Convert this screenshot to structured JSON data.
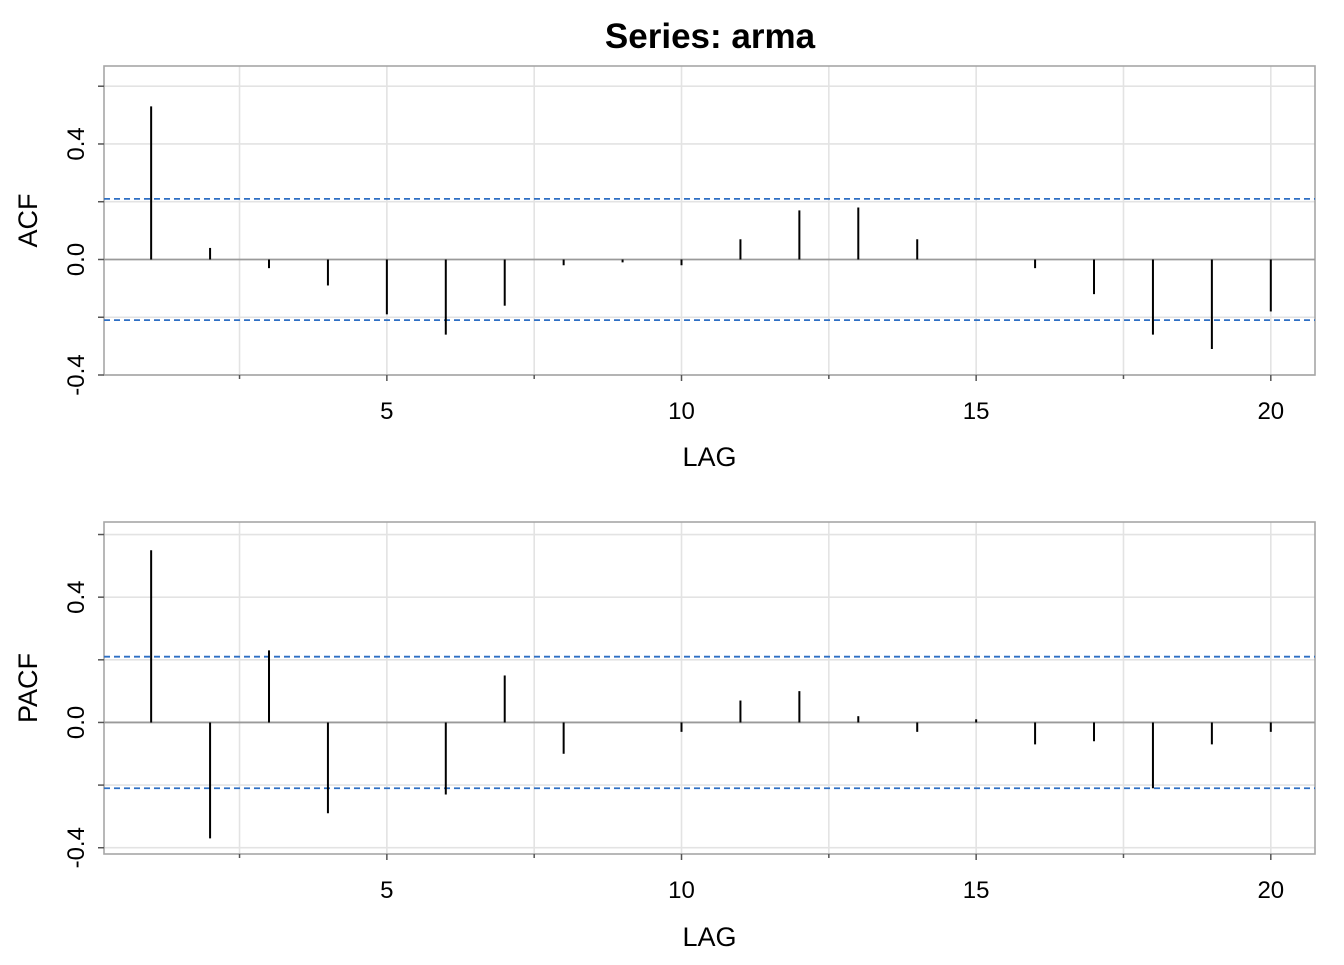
{
  "title": "Series:  arma",
  "chart_data": [
    {
      "type": "bar",
      "ylabel": "ACF",
      "xlabel": "LAG",
      "x_ticks": [
        5,
        10,
        15,
        20
      ],
      "x_tick_labels": [
        "5",
        "10",
        "15",
        "20"
      ],
      "y_ticks": [
        -0.4,
        0.0,
        0.4
      ],
      "y_tick_labels": [
        "-0.4",
        "0.0",
        "0.4"
      ],
      "xlim": [
        0.2,
        20.75
      ],
      "ylim": [
        -0.4,
        0.67
      ],
      "grid": true,
      "confidence_bound": 0.21,
      "lags": [
        1,
        2,
        3,
        4,
        5,
        6,
        7,
        8,
        9,
        10,
        11,
        12,
        13,
        14,
        15,
        16,
        17,
        18,
        19,
        20
      ],
      "values": [
        0.53,
        0.04,
        -0.03,
        -0.09,
        -0.19,
        -0.26,
        -0.16,
        -0.02,
        -0.01,
        -0.02,
        0.07,
        0.17,
        0.18,
        0.07,
        0.0,
        -0.03,
        -0.12,
        -0.26,
        -0.31,
        -0.18
      ]
    },
    {
      "type": "bar",
      "ylabel": "PACF",
      "xlabel": "LAG",
      "x_ticks": [
        5,
        10,
        15,
        20
      ],
      "x_tick_labels": [
        "5",
        "10",
        "15",
        "20"
      ],
      "y_ticks": [
        -0.4,
        0.0,
        0.4
      ],
      "y_tick_labels": [
        "-0.4",
        "0.0",
        "0.4"
      ],
      "xlim": [
        0.2,
        20.75
      ],
      "ylim": [
        -0.42,
        0.64
      ],
      "grid": true,
      "confidence_bound": 0.21,
      "lags": [
        1,
        2,
        3,
        4,
        5,
        6,
        7,
        8,
        9,
        10,
        11,
        12,
        13,
        14,
        15,
        16,
        17,
        18,
        19,
        20
      ],
      "values": [
        0.55,
        -0.37,
        0.23,
        -0.29,
        0.0,
        -0.23,
        0.15,
        -0.1,
        0.0,
        -0.03,
        0.07,
        0.1,
        0.02,
        -0.03,
        0.01,
        -0.07,
        -0.06,
        -0.21,
        -0.07,
        -0.03
      ]
    }
  ]
}
